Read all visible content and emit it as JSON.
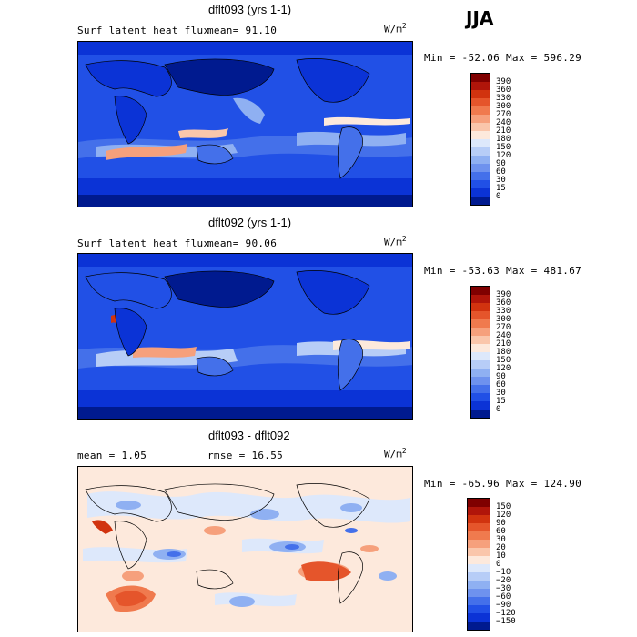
{
  "season": "JJA",
  "panels": [
    {
      "title": "dflt093 (yrs 1-1)",
      "left_label": "Surf latent heat flux",
      "stat_label": "mean=  91.10",
      "units_base": "W/m",
      "units_exp": "2",
      "minmax": "Min = -52.06 Max = 596.29",
      "levels": [
        "390",
        "360",
        "330",
        "300",
        "270",
        "240",
        "210",
        "180",
        "150",
        "120",
        "90",
        "60",
        "30",
        "15",
        "0"
      ],
      "colors": [
        "#7f0000",
        "#b0150a",
        "#d1330f",
        "#e5552b",
        "#f07a4e",
        "#f6a07c",
        "#fac6ab",
        "#fde9dc",
        "#dde8fb",
        "#b7cdf7",
        "#8fb0f2",
        "#6e92ee",
        "#4470ea",
        "#2150e6",
        "#0b33d6",
        "#001a8f"
      ]
    },
    {
      "title": "dflt092 (yrs 1-1)",
      "left_label": "Surf latent heat flux",
      "stat_label": "mean=  90.06",
      "units_base": "W/m",
      "units_exp": "2",
      "minmax": "Min = -53.63 Max = 481.67",
      "levels": [
        "390",
        "360",
        "330",
        "300",
        "270",
        "240",
        "210",
        "180",
        "150",
        "120",
        "90",
        "60",
        "30",
        "15",
        "0"
      ],
      "colors": [
        "#7f0000",
        "#b0150a",
        "#d1330f",
        "#e5552b",
        "#f07a4e",
        "#f6a07c",
        "#fac6ab",
        "#fde9dc",
        "#dde8fb",
        "#b7cdf7",
        "#8fb0f2",
        "#6e92ee",
        "#4470ea",
        "#2150e6",
        "#0b33d6",
        "#001a8f"
      ]
    },
    {
      "title": "dflt093 - dflt092",
      "left_label": "mean =    1.05",
      "stat_label": "rmse =   16.55",
      "units_base": "W/m",
      "units_exp": "2",
      "minmax": "Min = -65.96 Max = 124.90",
      "levels": [
        "150",
        "120",
        "90",
        "60",
        "30",
        "20",
        "10",
        "0",
        "−10",
        "−20",
        "−30",
        "−60",
        "−90",
        "−120",
        "−150"
      ],
      "colors": [
        "#7f0000",
        "#b0150a",
        "#d1330f",
        "#e5552b",
        "#f07a4e",
        "#f6a07c",
        "#fac6ab",
        "#fde9dc",
        "#dde8fb",
        "#b7cdf7",
        "#8fb0f2",
        "#6e92ee",
        "#4470ea",
        "#2150e6",
        "#0b33d6",
        "#001a8f"
      ]
    }
  ]
}
